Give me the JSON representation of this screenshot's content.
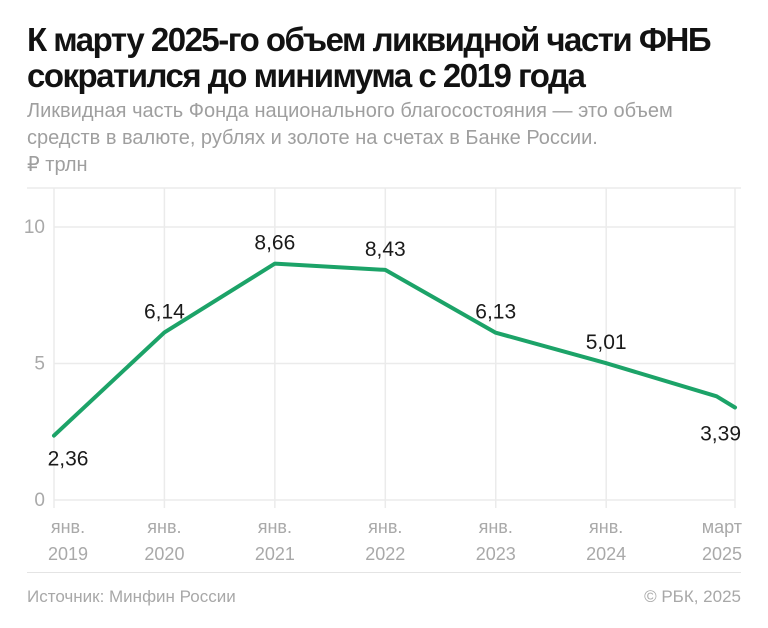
{
  "header": {
    "title_lines": [
      "К марту 2025-го объем ликвидной части ФНБ",
      "сократился до минимума с 2019 года"
    ],
    "subtitle_lines": [
      "Ликвидная часть Фонда национального благосостояния — это объем",
      "средств в валюте, рублях и золоте на счетах в Банке России."
    ],
    "unit": "₽ трлн"
  },
  "chart_data": {
    "type": "line",
    "title": "К марту 2025-го объем ликвидной части ФНБ сократился до минимума с 2019 года",
    "subtitle": "Ликвидная часть Фонда национального благосостояния — это объем средств в валюте, рублях и золоте на счетах в Банке России.",
    "ylabel": "₽ трлн",
    "xlabel": "",
    "ylim": [
      0,
      11.4
    ],
    "grid": true,
    "legend": "none",
    "line_color": "#1CA368",
    "y_ticks": [
      {
        "label": "10",
        "value": 10
      },
      {
        "label": "5",
        "value": 5
      },
      {
        "label": "0",
        "value": 0
      }
    ],
    "x_ticks": [
      {
        "line1": "янв.",
        "line2": "2019",
        "month": 0
      },
      {
        "line1": "янв.",
        "line2": "2020",
        "month": 12
      },
      {
        "line1": "янв.",
        "line2": "2021",
        "month": 24
      },
      {
        "line1": "янв.",
        "line2": "2022",
        "month": 36
      },
      {
        "line1": "янв.",
        "line2": "2023",
        "month": 48
      },
      {
        "line1": "янв.",
        "line2": "2024",
        "month": 60
      },
      {
        "line1": "март",
        "line2": "2025",
        "month": 74
      }
    ],
    "points": [
      {
        "x": "янв. 2019",
        "month": 0,
        "value": 2.36,
        "label": "2,36",
        "label_pos": "below-start"
      },
      {
        "x": "янв. 2020",
        "month": 12,
        "value": 6.14,
        "label": "6,14",
        "label_pos": "above"
      },
      {
        "x": "янв. 2021",
        "month": 24,
        "value": 8.66,
        "label": "8,66",
        "label_pos": "above"
      },
      {
        "x": "янв. 2022",
        "month": 36,
        "value": 8.43,
        "label": "8,43",
        "label_pos": "above"
      },
      {
        "x": "янв. 2023",
        "month": 48,
        "value": 6.13,
        "label": "6,13",
        "label_pos": "above"
      },
      {
        "x": "янв. 2024",
        "month": 60,
        "value": 5.01,
        "label": "5,01",
        "label_pos": "above"
      },
      {
        "x": "янв. 2025",
        "month": 72,
        "value": 3.8,
        "label": "",
        "label_pos": "none"
      },
      {
        "x": "март 2025",
        "month": 74,
        "value": 3.39,
        "label": "3,39",
        "label_pos": "below-end"
      }
    ]
  },
  "footer": {
    "source": "Источник: Минфин России",
    "copyright": "© РБК, 2025"
  },
  "colors": {
    "background": "#ffffff",
    "accent_green": "#1CA368",
    "grid": "#ebebeb",
    "axis_text": "#a9a9a9",
    "title_text": "#121212",
    "subtitle_text": "#9f9f9f",
    "value_text": "#1a1a1a",
    "footer_text": "#a8a8a8",
    "divider": "#e4e4e4"
  }
}
